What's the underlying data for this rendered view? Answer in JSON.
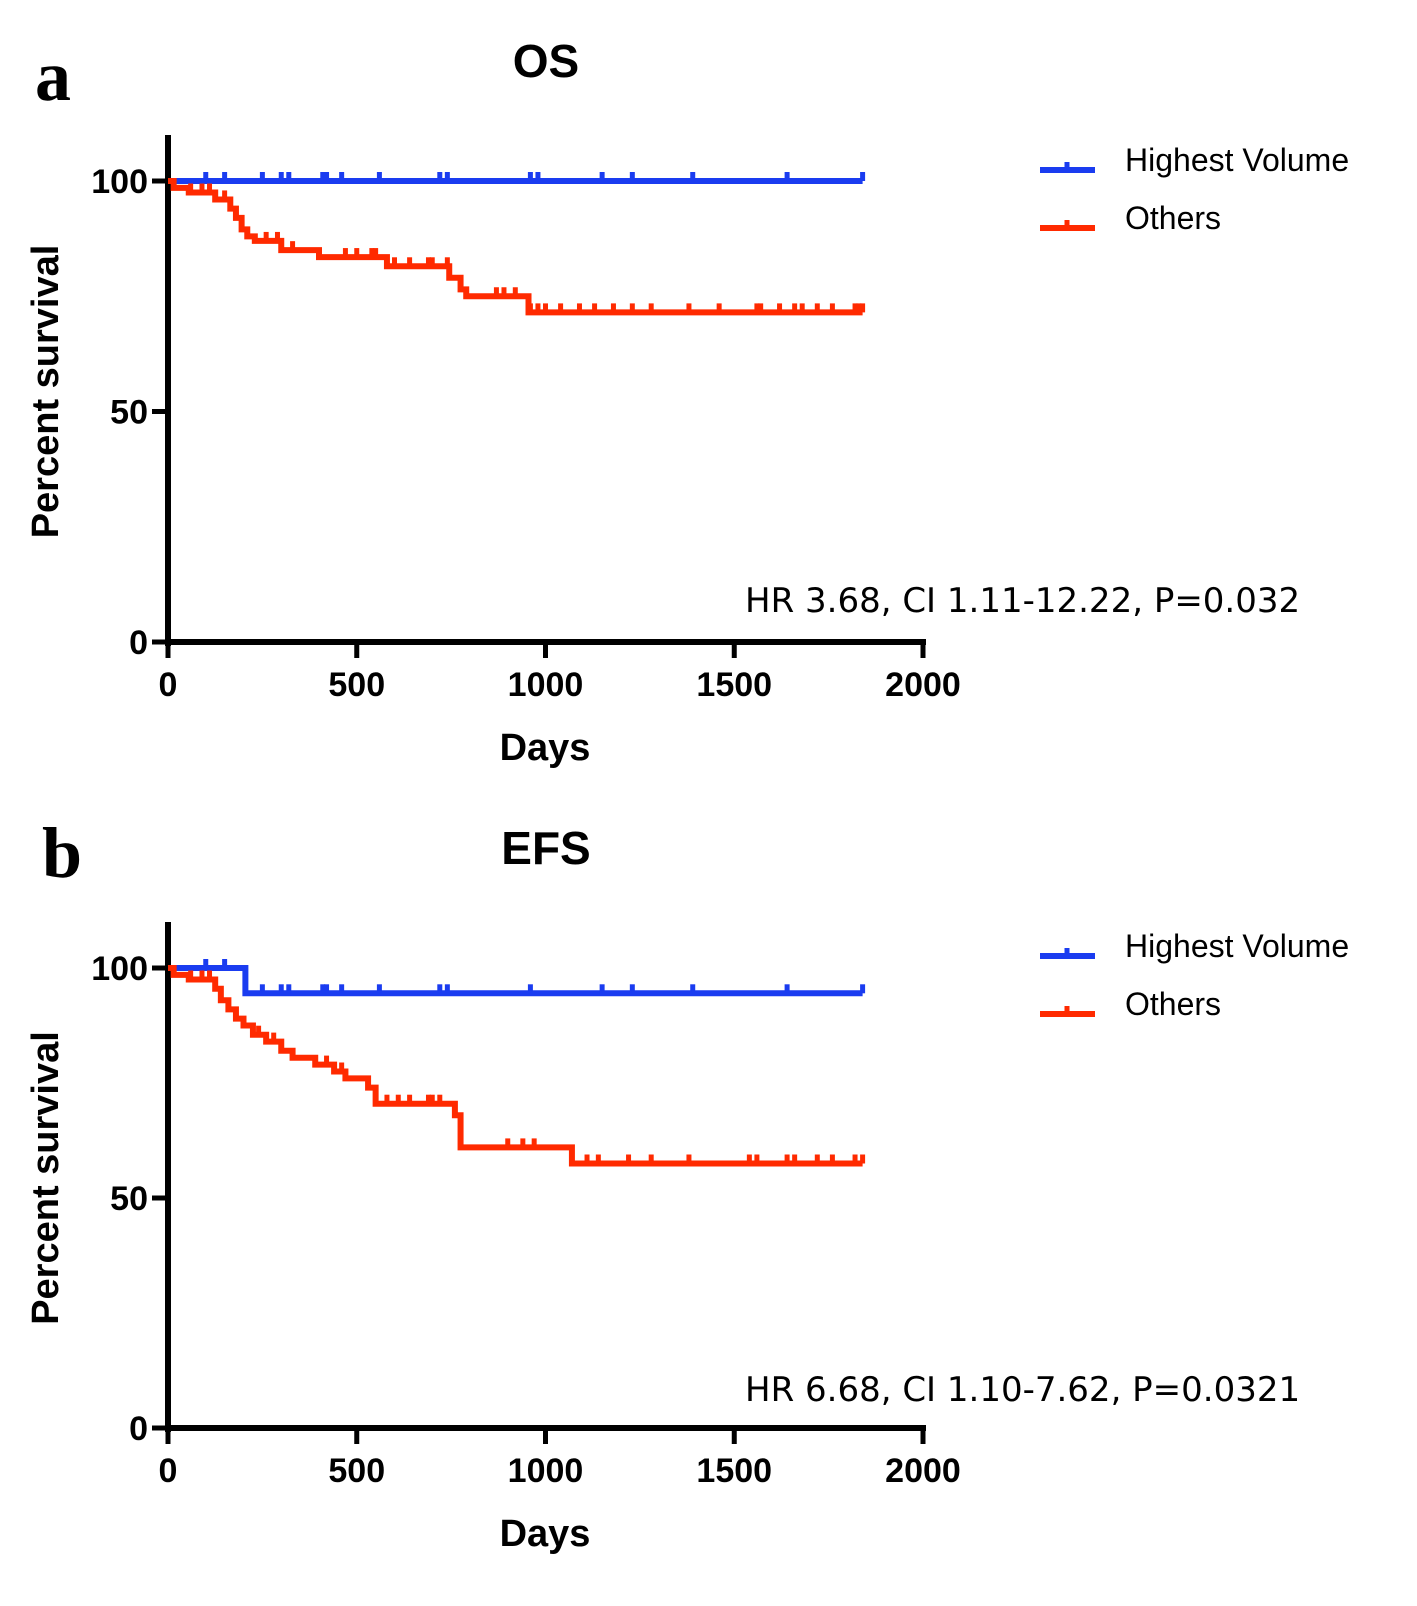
{
  "chart_data": [
    {
      "type": "line",
      "subtype": "kaplan-meier",
      "panel_label": "a",
      "title": "OS",
      "xlabel": "Days",
      "ylabel": "Percent survival",
      "xlim": [
        0,
        2000
      ],
      "ylim": [
        0,
        110
      ],
      "xticks": [
        0,
        500,
        1000,
        1500,
        2000
      ],
      "xtick_labels": [
        "0",
        "500",
        "1000",
        "1500",
        "2000"
      ],
      "yticks": [
        0,
        50,
        100
      ],
      "ytick_labels": [
        "0",
        "50",
        "100"
      ],
      "grid": false,
      "legend_position": "top-right",
      "annotation": "HR 3.68, CI 1.11-12.22, P=0.032",
      "series": [
        {
          "name": "Highest Volume",
          "color": "#1a3cf0",
          "steps": [
            [
              0,
              100
            ],
            [
              1840,
              100
            ]
          ],
          "censored": [
            100,
            150,
            250,
            300,
            320,
            410,
            420,
            460,
            560,
            720,
            740,
            960,
            980,
            1150,
            1230,
            1390,
            1640,
            1840
          ]
        },
        {
          "name": "Others",
          "color": "#ff2a00",
          "steps": [
            [
              0,
              100
            ],
            [
              15,
              98.5
            ],
            [
              55,
              97.5
            ],
            [
              125,
              96
            ],
            [
              165,
              94
            ],
            [
              180,
              92
            ],
            [
              195,
              89.5
            ],
            [
              210,
              88
            ],
            [
              230,
              87
            ],
            [
              300,
              85
            ],
            [
              370,
              85
            ],
            [
              400,
              83.5
            ],
            [
              570,
              83.5
            ],
            [
              580,
              81.5
            ],
            [
              730,
              81.5
            ],
            [
              745,
              79
            ],
            [
              775,
              76.5
            ],
            [
              790,
              75
            ],
            [
              940,
              75
            ],
            [
              955,
              71.5
            ],
            [
              1840,
              71.5
            ]
          ],
          "censored": [
            60,
            90,
            110,
            150,
            260,
            290,
            330,
            470,
            500,
            540,
            550,
            600,
            640,
            690,
            700,
            740,
            870,
            890,
            920,
            960,
            980,
            1000,
            1040,
            1090,
            1130,
            1180,
            1230,
            1280,
            1380,
            1460,
            1560,
            1570,
            1620,
            1660,
            1680,
            1720,
            1760,
            1820,
            1830,
            1840
          ]
        }
      ]
    },
    {
      "type": "line",
      "subtype": "kaplan-meier",
      "panel_label": "b",
      "title": "EFS",
      "xlabel": "Days",
      "ylabel": "Percent survival",
      "xlim": [
        0,
        2000
      ],
      "ylim": [
        0,
        110
      ],
      "xticks": [
        0,
        500,
        1000,
        1500,
        2000
      ],
      "xtick_labels": [
        "0",
        "500",
        "1000",
        "1500",
        "2000"
      ],
      "yticks": [
        0,
        50,
        100
      ],
      "ytick_labels": [
        "0",
        "50",
        "100"
      ],
      "grid": false,
      "legend_position": "top-right",
      "annotation": "HR 6.68, CI 1.10-7.62, P=0.0321",
      "series": [
        {
          "name": "Highest Volume",
          "color": "#1a3cf0",
          "steps": [
            [
              0,
              100
            ],
            [
              200,
              100
            ],
            [
              205,
              94.5
            ],
            [
              1840,
              94.5
            ]
          ],
          "censored": [
            100,
            150,
            250,
            300,
            320,
            410,
            420,
            460,
            560,
            720,
            740,
            960,
            1150,
            1230,
            1390,
            1640,
            1840
          ]
        },
        {
          "name": "Others",
          "color": "#ff2a00",
          "steps": [
            [
              0,
              100
            ],
            [
              15,
              98.5
            ],
            [
              55,
              97.5
            ],
            [
              125,
              95.5
            ],
            [
              140,
              93
            ],
            [
              160,
              91
            ],
            [
              180,
              89
            ],
            [
              200,
              87.5
            ],
            [
              225,
              85.5
            ],
            [
              260,
              84
            ],
            [
              300,
              82
            ],
            [
              330,
              80.5
            ],
            [
              390,
              79
            ],
            [
              440,
              77.5
            ],
            [
              470,
              76
            ],
            [
              530,
              74
            ],
            [
              550,
              70.5
            ],
            [
              745,
              70.5
            ],
            [
              760,
              68
            ],
            [
              775,
              61
            ],
            [
              1065,
              61
            ],
            [
              1070,
              57.5
            ],
            [
              1840,
              57.5
            ]
          ],
          "censored": [
            60,
            90,
            110,
            240,
            280,
            330,
            420,
            460,
            580,
            610,
            640,
            690,
            700,
            720,
            900,
            940,
            970,
            1110,
            1140,
            1220,
            1280,
            1380,
            1540,
            1560,
            1640,
            1660,
            1720,
            1760,
            1820,
            1840
          ]
        }
      ]
    }
  ]
}
